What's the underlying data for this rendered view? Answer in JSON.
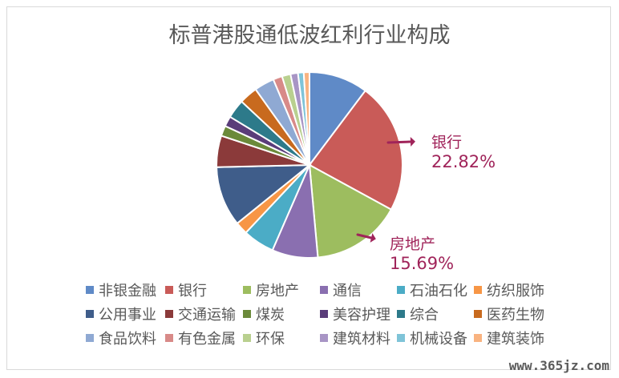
{
  "chart_data": {
    "type": "pie",
    "title": "标普港股通低波红利行业构成",
    "slices": [
      {
        "label": "非银金融",
        "value": 10.3,
        "color": "#5f8ac7"
      },
      {
        "label": "银行",
        "value": 22.82,
        "color": "#c95b58"
      },
      {
        "label": "房地产",
        "value": 15.69,
        "color": "#9dbd5f"
      },
      {
        "label": "通信",
        "value": 8.0,
        "color": "#8a6fb0"
      },
      {
        "label": "石油石化",
        "value": 5.5,
        "color": "#4bacc6"
      },
      {
        "label": "纺织服饰",
        "value": 2.2,
        "color": "#f79646"
      },
      {
        "label": "公用事业",
        "value": 10.5,
        "color": "#3f5d8a"
      },
      {
        "label": "交通运输",
        "value": 5.5,
        "color": "#8b3a3a"
      },
      {
        "label": "煤炭",
        "value": 1.8,
        "color": "#6b8a3a"
      },
      {
        "label": "美容护理",
        "value": 1.8,
        "color": "#5a3d7a"
      },
      {
        "label": "综合",
        "value": 3.3,
        "color": "#2d7a8a"
      },
      {
        "label": "医药生物",
        "value": 3.2,
        "color": "#c86a1e"
      },
      {
        "label": "食品饮料",
        "value": 3.5,
        "color": "#8fa9d3"
      },
      {
        "label": "有色金属",
        "value": 1.6,
        "color": "#d88a88"
      },
      {
        "label": "环保",
        "value": 1.5,
        "color": "#b9d08f"
      },
      {
        "label": "建筑材料",
        "value": 1.3,
        "color": "#a895c5"
      },
      {
        "label": "机械设备",
        "value": 1.0,
        "color": "#7fc4d8"
      },
      {
        "label": "建筑装饰",
        "value": 1.0,
        "color": "#f9b380"
      }
    ]
  },
  "annotations": [
    {
      "label": "银行",
      "value": "22.82%"
    },
    {
      "label": "房地产",
      "value": "15.69%"
    }
  ],
  "annotation_color": "#a0245a",
  "watermark": "www.365jz.com"
}
